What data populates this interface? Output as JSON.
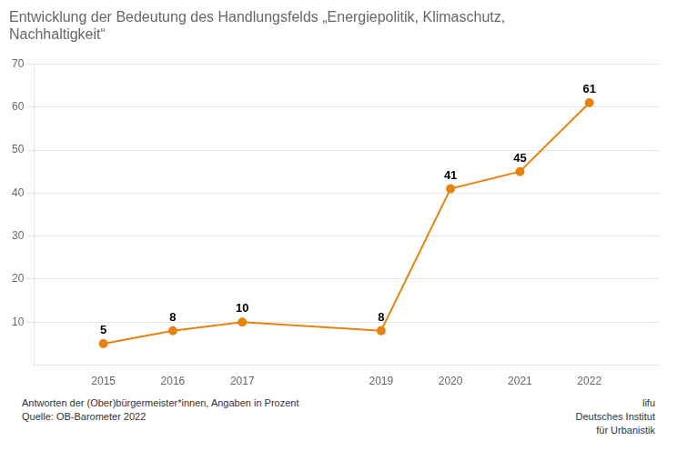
{
  "chart_data": {
    "type": "line",
    "title": [
      "Entwicklung der Bedeutung des Handlungsfelds „Energiepolitik, Klimaschutz,",
      "Nachhaltigkeit“"
    ],
    "x": [
      2015,
      2016,
      2017,
      2019,
      2020,
      2021,
      2022
    ],
    "values": [
      5,
      8,
      10,
      8,
      41,
      45,
      61
    ],
    "color": "#E8820C",
    "xlim": [
      2014,
      2023
    ],
    "xticks": [
      2015,
      2016,
      2017,
      2019,
      2020,
      2021,
      2022
    ],
    "ylim": [
      0,
      70
    ],
    "yticks": [
      10,
      20,
      30,
      40,
      50,
      60,
      70
    ],
    "grid": true,
    "data_labels": true,
    "marker": "circle",
    "annotations": [
      "Antworten der (Ober)bürgermeister*innen, Angaben in Prozent",
      "Quelle: OB-Barometer 2022",
      "lifu",
      "Deutsches Institut",
      "für Urbanistik"
    ]
  }
}
